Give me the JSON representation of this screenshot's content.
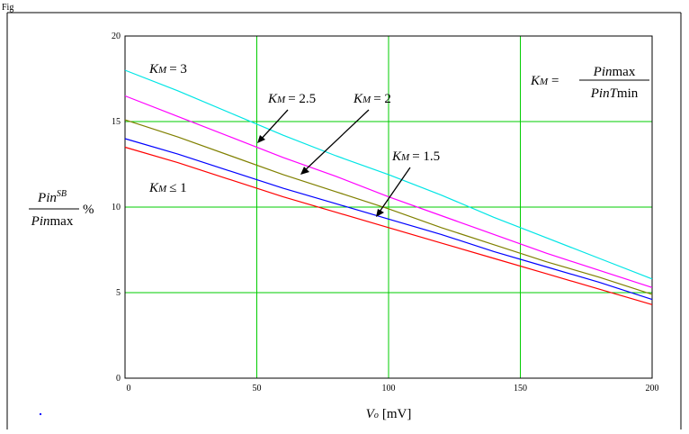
{
  "figure_label": "Fig",
  "chart_data": {
    "type": "line",
    "xlabel": {
      "var": "Vo",
      "unit": "[mV]"
    },
    "ylabel": {
      "numerator": "PinSB",
      "denominator": "Pinmax",
      "unit": "%"
    },
    "xlim": [
      0,
      200
    ],
    "ylim": [
      0,
      20
    ],
    "x_ticks": [
      "0",
      "50",
      "100",
      "150",
      "200"
    ],
    "y_ticks": [
      "0",
      "5",
      "10",
      "15",
      "20"
    ],
    "grid": true,
    "grid_color": "#00cc00",
    "x": [
      0,
      20,
      40,
      60,
      80,
      100,
      120,
      140,
      160,
      180,
      200
    ],
    "series": [
      {
        "name": "KM = 3",
        "color": "#00e5e5",
        "values": [
          18.0,
          16.8,
          15.5,
          14.2,
          13.0,
          11.9,
          10.7,
          9.4,
          8.2,
          7.0,
          5.8
        ]
      },
      {
        "name": "KM = 2.5",
        "color": "#ff00ff",
        "values": [
          16.5,
          15.3,
          14.1,
          12.9,
          11.8,
          10.6,
          9.5,
          8.4,
          7.3,
          6.3,
          5.3
        ]
      },
      {
        "name": "KM = 2",
        "color": "#808000",
        "values": [
          15.1,
          14.1,
          13.0,
          11.9,
          10.9,
          9.9,
          8.8,
          7.8,
          6.8,
          5.9,
          4.9
        ]
      },
      {
        "name": "KM = 1.5",
        "color": "#0000ff",
        "values": [
          14.0,
          13.1,
          12.1,
          11.1,
          10.2,
          9.3,
          8.4,
          7.4,
          6.5,
          5.6,
          4.6
        ]
      },
      {
        "name": "KM ≤ 1",
        "color": "#ff0000",
        "values": [
          13.5,
          12.6,
          11.6,
          10.6,
          9.7,
          8.8,
          7.9,
          7.0,
          6.1,
          5.2,
          4.3
        ]
      }
    ],
    "annotations": [
      {
        "id": "km3",
        "text": "= 3"
      },
      {
        "id": "km25",
        "text": "= 2.5"
      },
      {
        "id": "km2",
        "text": "= 2"
      },
      {
        "id": "km15",
        "text": "= 1.5"
      },
      {
        "id": "km1",
        "text": "≤ 1"
      }
    ],
    "formula": {
      "lhs": "KM =",
      "numerator": "Pinmax",
      "denominator": "PinTmin"
    }
  }
}
